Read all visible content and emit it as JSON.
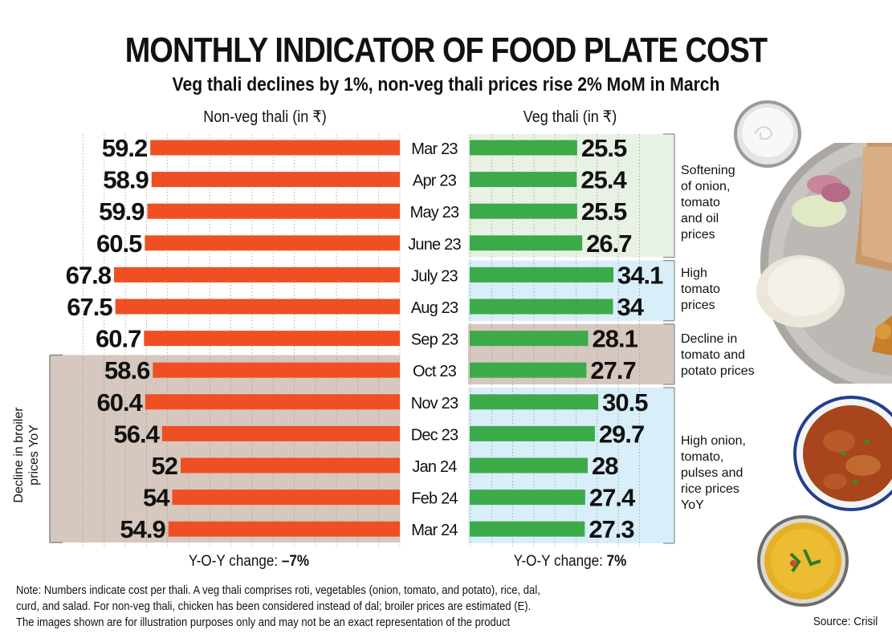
{
  "header": {
    "title": "MONTHLY INDICATOR OF FOOD PLATE COST",
    "subtitle": "Veg thali declines by 1%, non-veg thali prices rise 2% MoM in March"
  },
  "columns": {
    "nonveg_header": "Non-veg thali (in ₹)",
    "veg_header": "Veg thali (in ₹)"
  },
  "chart_data": {
    "type": "bar",
    "title": "MONTHLY INDICATOR OF FOOD PLATE COST",
    "subtitle": "Veg thali declines by 1%, non-veg thali prices rise 2% MoM in March",
    "orientation": "horizontal",
    "categories": [
      "Mar 23",
      "Apr 23",
      "May 23",
      "June 23",
      "July 23",
      "Aug 23",
      "Sep 23",
      "Oct 23",
      "Nov 23",
      "Dec 23",
      "Jan 24",
      "Feb 24",
      "Mar 24"
    ],
    "series": [
      {
        "name": "Non-veg thali (in ₹)",
        "color": "#ee5024",
        "direction": "left",
        "values": [
          59.2,
          58.9,
          59.9,
          60.5,
          67.8,
          67.5,
          60.7,
          58.6,
          60.4,
          56.4,
          52,
          54,
          54.9
        ]
      },
      {
        "name": "Veg thali (in ₹)",
        "color": "#3daa4a",
        "direction": "right",
        "values": [
          25.5,
          25.4,
          25.5,
          26.7,
          34.1,
          34,
          28.1,
          27.7,
          30.5,
          29.7,
          28,
          27.4,
          27.3
        ]
      }
    ],
    "grid": true,
    "xlabel": "",
    "ylabel": "",
    "value_labels": [
      "59.2",
      "58.9",
      "59.9",
      "60.5",
      "67.8",
      "67.5",
      "60.7",
      "58.6",
      "60.4",
      "56.4",
      "52",
      "54",
      "54.9"
    ],
    "veg_value_labels": [
      "25.5",
      "25.4",
      "25.5",
      "26.7",
      "34.1",
      "34",
      "28.1",
      "27.7",
      "30.5",
      "29.7",
      "28",
      "27.4",
      "27.3"
    ]
  },
  "nonveg_groups": [
    {
      "from": 7,
      "to": 12,
      "color": "#d6c7bf",
      "label": "Decline in broiler prices YoY"
    }
  ],
  "veg_groups": [
    {
      "from": 0,
      "to": 3,
      "color": "#e8f2e4",
      "label": "Softening of onion, tomato and oil prices"
    },
    {
      "from": 4,
      "to": 5,
      "color": "#d8eef9",
      "label": "High tomato prices"
    },
    {
      "from": 6,
      "to": 7,
      "color": "#d6c7bf",
      "label": "Decline in tomato and potato prices"
    },
    {
      "from": 8,
      "to": 12,
      "color": "#d8eef9",
      "label": "High onion, tomato, pulses and rice prices YoY"
    }
  ],
  "annotations": {
    "broiler": "Decline in broiler prices YoY",
    "veg_1": [
      "Softening",
      "of onion,",
      "tomato",
      "and oil",
      "prices"
    ],
    "veg_2": [
      "High",
      "tomato",
      "prices"
    ],
    "veg_3": [
      "Decline in",
      "tomato and",
      "potato prices"
    ],
    "veg_4": [
      "High onion,",
      "tomato,",
      "pulses and",
      "rice prices",
      "YoY"
    ]
  },
  "yoy": {
    "label": "Y-O-Y change:",
    "nonveg_value": "–7%",
    "veg_value": "7%"
  },
  "note": {
    "line1": "Note: Numbers indicate cost per thali. A veg thali comprises roti, vegetables (onion, tomato, and potato), rice, dal,",
    "line2": "curd, and salad. For non-veg thali, chicken has been considered instead of dal; broiler prices are estimated (E).",
    "line3": "The images shown are for illustration purposes only and may not be an exact representation of the product"
  },
  "source": "Source: Crisil",
  "images": [
    "curd-bowl",
    "veg-thali-plate",
    "chicken-curry-bowl",
    "dal-bowl"
  ]
}
